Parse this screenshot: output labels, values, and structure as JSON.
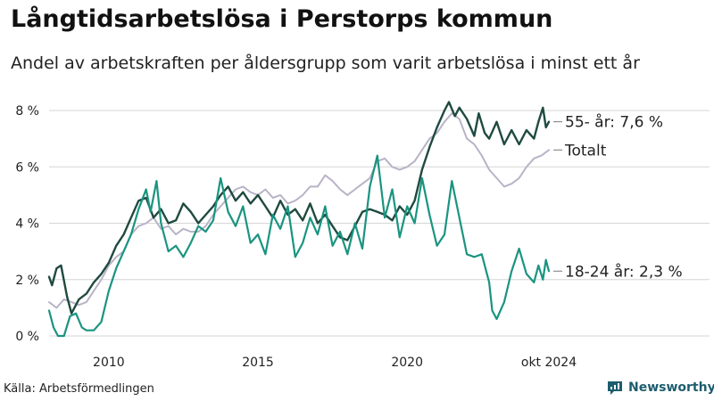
{
  "header": {
    "title": "Långtidsarbetslösa i Perstorps kommun",
    "subtitle": "Andel av arbetskraften per åldersgrupp som varit arbetslösa i minst ett år"
  },
  "footer": {
    "source": "Källa: Arbetsförmedlingen",
    "brand": "Newsworthy"
  },
  "colors": {
    "s55": "#1f4a40",
    "total": "#b9b3c7",
    "s1824": "#1a9480",
    "grid": "#d6d6d6",
    "brand": "#1d5d6e"
  },
  "chart_data": {
    "type": "line",
    "title": "Långtidsarbetslösa i Perstorps kommun",
    "subtitle": "Andel av arbetskraften per åldersgrupp som varit arbetslösa i minst ett år",
    "xlabel": "",
    "ylabel": "",
    "xlim": [
      2008.0,
      2024.75
    ],
    "ylim": [
      0,
      8
    ],
    "y_ticks": [
      "0 %",
      "2 %",
      "4 %",
      "6 %",
      "8 %"
    ],
    "x_ticks": [
      {
        "value": 2010,
        "label": "2010"
      },
      {
        "value": 2015,
        "label": "2015"
      },
      {
        "value": 2020,
        "label": "2020"
      },
      {
        "value": 2024.75,
        "label": "okt 2024"
      }
    ],
    "grid": true,
    "legend": "end-labels",
    "series": [
      {
        "name": "Totalt",
        "end_label": "Totalt",
        "color_key": "total",
        "points": [
          [
            2008.0,
            1.2
          ],
          [
            2008.25,
            1.0
          ],
          [
            2008.5,
            1.3
          ],
          [
            2008.75,
            1.2
          ],
          [
            2009.0,
            1.1
          ],
          [
            2009.25,
            1.2
          ],
          [
            2009.5,
            1.6
          ],
          [
            2009.75,
            2.0
          ],
          [
            2010.0,
            2.5
          ],
          [
            2010.25,
            2.8
          ],
          [
            2010.5,
            3.0
          ],
          [
            2010.75,
            3.6
          ],
          [
            2011.0,
            3.9
          ],
          [
            2011.25,
            4.0
          ],
          [
            2011.5,
            4.2
          ],
          [
            2011.75,
            3.8
          ],
          [
            2012.0,
            3.9
          ],
          [
            2012.25,
            3.6
          ],
          [
            2012.5,
            3.8
          ],
          [
            2012.75,
            3.7
          ],
          [
            2013.0,
            3.7
          ],
          [
            2013.25,
            3.9
          ],
          [
            2013.5,
            4.3
          ],
          [
            2013.75,
            4.6
          ],
          [
            2014.0,
            4.9
          ],
          [
            2014.25,
            5.2
          ],
          [
            2014.5,
            5.3
          ],
          [
            2014.75,
            5.1
          ],
          [
            2015.0,
            5.0
          ],
          [
            2015.25,
            5.2
          ],
          [
            2015.5,
            4.9
          ],
          [
            2015.75,
            5.0
          ],
          [
            2016.0,
            4.7
          ],
          [
            2016.25,
            4.8
          ],
          [
            2016.5,
            5.0
          ],
          [
            2016.75,
            5.3
          ],
          [
            2017.0,
            5.3
          ],
          [
            2017.25,
            5.7
          ],
          [
            2017.5,
            5.5
          ],
          [
            2017.75,
            5.2
          ],
          [
            2018.0,
            5.0
          ],
          [
            2018.25,
            5.2
          ],
          [
            2018.5,
            5.4
          ],
          [
            2018.75,
            5.6
          ],
          [
            2019.0,
            6.2
          ],
          [
            2019.25,
            6.3
          ],
          [
            2019.5,
            6.0
          ],
          [
            2019.75,
            5.9
          ],
          [
            2020.0,
            6.0
          ],
          [
            2020.25,
            6.2
          ],
          [
            2020.5,
            6.6
          ],
          [
            2020.75,
            7.0
          ],
          [
            2021.0,
            7.2
          ],
          [
            2021.25,
            7.6
          ],
          [
            2021.5,
            7.9
          ],
          [
            2021.75,
            7.7
          ],
          [
            2022.0,
            7.0
          ],
          [
            2022.25,
            6.8
          ],
          [
            2022.5,
            6.4
          ],
          [
            2022.75,
            5.9
          ],
          [
            2023.0,
            5.6
          ],
          [
            2023.25,
            5.3
          ],
          [
            2023.5,
            5.4
          ],
          [
            2023.75,
            5.6
          ],
          [
            2024.0,
            6.0
          ],
          [
            2024.25,
            6.3
          ],
          [
            2024.5,
            6.4
          ],
          [
            2024.75,
            6.6
          ]
        ]
      },
      {
        "name": "55- år",
        "end_label": "55- år: 7,6 %",
        "color_key": "s55",
        "points": [
          [
            2008.0,
            2.1
          ],
          [
            2008.1,
            1.8
          ],
          [
            2008.25,
            2.4
          ],
          [
            2008.4,
            2.5
          ],
          [
            2008.6,
            1.4
          ],
          [
            2008.75,
            0.8
          ],
          [
            2009.0,
            1.3
          ],
          [
            2009.25,
            1.5
          ],
          [
            2009.5,
            1.9
          ],
          [
            2009.75,
            2.2
          ],
          [
            2010.0,
            2.6
          ],
          [
            2010.25,
            3.2
          ],
          [
            2010.5,
            3.6
          ],
          [
            2010.75,
            4.2
          ],
          [
            2011.0,
            4.8
          ],
          [
            2011.25,
            4.9
          ],
          [
            2011.5,
            4.2
          ],
          [
            2011.75,
            4.5
          ],
          [
            2012.0,
            4.0
          ],
          [
            2012.25,
            4.1
          ],
          [
            2012.5,
            4.7
          ],
          [
            2012.75,
            4.4
          ],
          [
            2013.0,
            4.0
          ],
          [
            2013.25,
            4.3
          ],
          [
            2013.5,
            4.6
          ],
          [
            2013.75,
            5.0
          ],
          [
            2014.0,
            5.3
          ],
          [
            2014.25,
            4.8
          ],
          [
            2014.5,
            5.1
          ],
          [
            2014.75,
            4.7
          ],
          [
            2015.0,
            5.0
          ],
          [
            2015.25,
            4.6
          ],
          [
            2015.5,
            4.2
          ],
          [
            2015.75,
            4.8
          ],
          [
            2016.0,
            4.3
          ],
          [
            2016.25,
            4.5
          ],
          [
            2016.5,
            4.1
          ],
          [
            2016.75,
            4.7
          ],
          [
            2017.0,
            4.0
          ],
          [
            2017.25,
            4.3
          ],
          [
            2017.5,
            3.9
          ],
          [
            2017.75,
            3.5
          ],
          [
            2018.0,
            3.4
          ],
          [
            2018.25,
            3.9
          ],
          [
            2018.5,
            4.4
          ],
          [
            2018.75,
            4.5
          ],
          [
            2019.0,
            4.4
          ],
          [
            2019.25,
            4.3
          ],
          [
            2019.5,
            4.1
          ],
          [
            2019.75,
            4.6
          ],
          [
            2020.0,
            4.3
          ],
          [
            2020.25,
            4.8
          ],
          [
            2020.5,
            5.9
          ],
          [
            2020.75,
            6.7
          ],
          [
            2021.0,
            7.4
          ],
          [
            2021.25,
            8.0
          ],
          [
            2021.4,
            8.3
          ],
          [
            2021.6,
            7.8
          ],
          [
            2021.75,
            8.1
          ],
          [
            2022.0,
            7.7
          ],
          [
            2022.25,
            7.1
          ],
          [
            2022.4,
            7.9
          ],
          [
            2022.6,
            7.2
          ],
          [
            2022.75,
            7.0
          ],
          [
            2023.0,
            7.6
          ],
          [
            2023.25,
            6.8
          ],
          [
            2023.5,
            7.3
          ],
          [
            2023.75,
            6.8
          ],
          [
            2024.0,
            7.3
          ],
          [
            2024.25,
            7.0
          ],
          [
            2024.4,
            7.6
          ],
          [
            2024.55,
            8.1
          ],
          [
            2024.65,
            7.4
          ],
          [
            2024.75,
            7.6
          ]
        ]
      },
      {
        "name": "18-24 år",
        "end_label": "18-24 år: 2,3 %",
        "color_key": "s1824",
        "points": [
          [
            2008.0,
            0.9
          ],
          [
            2008.15,
            0.3
          ],
          [
            2008.3,
            0.0
          ],
          [
            2008.5,
            0.0
          ],
          [
            2008.7,
            0.7
          ],
          [
            2008.9,
            0.8
          ],
          [
            2009.1,
            0.3
          ],
          [
            2009.25,
            0.2
          ],
          [
            2009.5,
            0.2
          ],
          [
            2009.75,
            0.5
          ],
          [
            2010.0,
            1.6
          ],
          [
            2010.25,
            2.4
          ],
          [
            2010.5,
            3.0
          ],
          [
            2010.75,
            3.6
          ],
          [
            2011.0,
            4.5
          ],
          [
            2011.25,
            5.2
          ],
          [
            2011.4,
            4.4
          ],
          [
            2011.6,
            5.5
          ],
          [
            2011.75,
            4.0
          ],
          [
            2012.0,
            3.0
          ],
          [
            2012.25,
            3.2
          ],
          [
            2012.5,
            2.8
          ],
          [
            2012.75,
            3.3
          ],
          [
            2013.0,
            3.9
          ],
          [
            2013.25,
            3.7
          ],
          [
            2013.5,
            4.1
          ],
          [
            2013.75,
            5.6
          ],
          [
            2014.0,
            4.4
          ],
          [
            2014.25,
            3.9
          ],
          [
            2014.5,
            4.6
          ],
          [
            2014.75,
            3.3
          ],
          [
            2015.0,
            3.6
          ],
          [
            2015.25,
            2.9
          ],
          [
            2015.5,
            4.3
          ],
          [
            2015.75,
            3.8
          ],
          [
            2016.0,
            4.6
          ],
          [
            2016.25,
            2.8
          ],
          [
            2016.5,
            3.3
          ],
          [
            2016.75,
            4.2
          ],
          [
            2017.0,
            3.6
          ],
          [
            2017.25,
            4.6
          ],
          [
            2017.5,
            3.2
          ],
          [
            2017.75,
            3.7
          ],
          [
            2018.0,
            2.9
          ],
          [
            2018.25,
            4.0
          ],
          [
            2018.5,
            3.1
          ],
          [
            2018.75,
            5.3
          ],
          [
            2019.0,
            6.4
          ],
          [
            2019.25,
            4.2
          ],
          [
            2019.5,
            5.2
          ],
          [
            2019.75,
            3.5
          ],
          [
            2020.0,
            4.6
          ],
          [
            2020.25,
            4.0
          ],
          [
            2020.5,
            5.6
          ],
          [
            2020.75,
            4.3
          ],
          [
            2021.0,
            3.2
          ],
          [
            2021.25,
            3.6
          ],
          [
            2021.5,
            5.5
          ],
          [
            2021.75,
            4.2
          ],
          [
            2022.0,
            2.9
          ],
          [
            2022.25,
            2.8
          ],
          [
            2022.5,
            2.9
          ],
          [
            2022.75,
            1.9
          ],
          [
            2022.85,
            0.9
          ],
          [
            2023.0,
            0.6
          ],
          [
            2023.25,
            1.2
          ],
          [
            2023.5,
            2.3
          ],
          [
            2023.75,
            3.1
          ],
          [
            2024.0,
            2.2
          ],
          [
            2024.25,
            1.9
          ],
          [
            2024.4,
            2.5
          ],
          [
            2024.55,
            2.0
          ],
          [
            2024.65,
            2.7
          ],
          [
            2024.75,
            2.3
          ]
        ]
      }
    ]
  }
}
